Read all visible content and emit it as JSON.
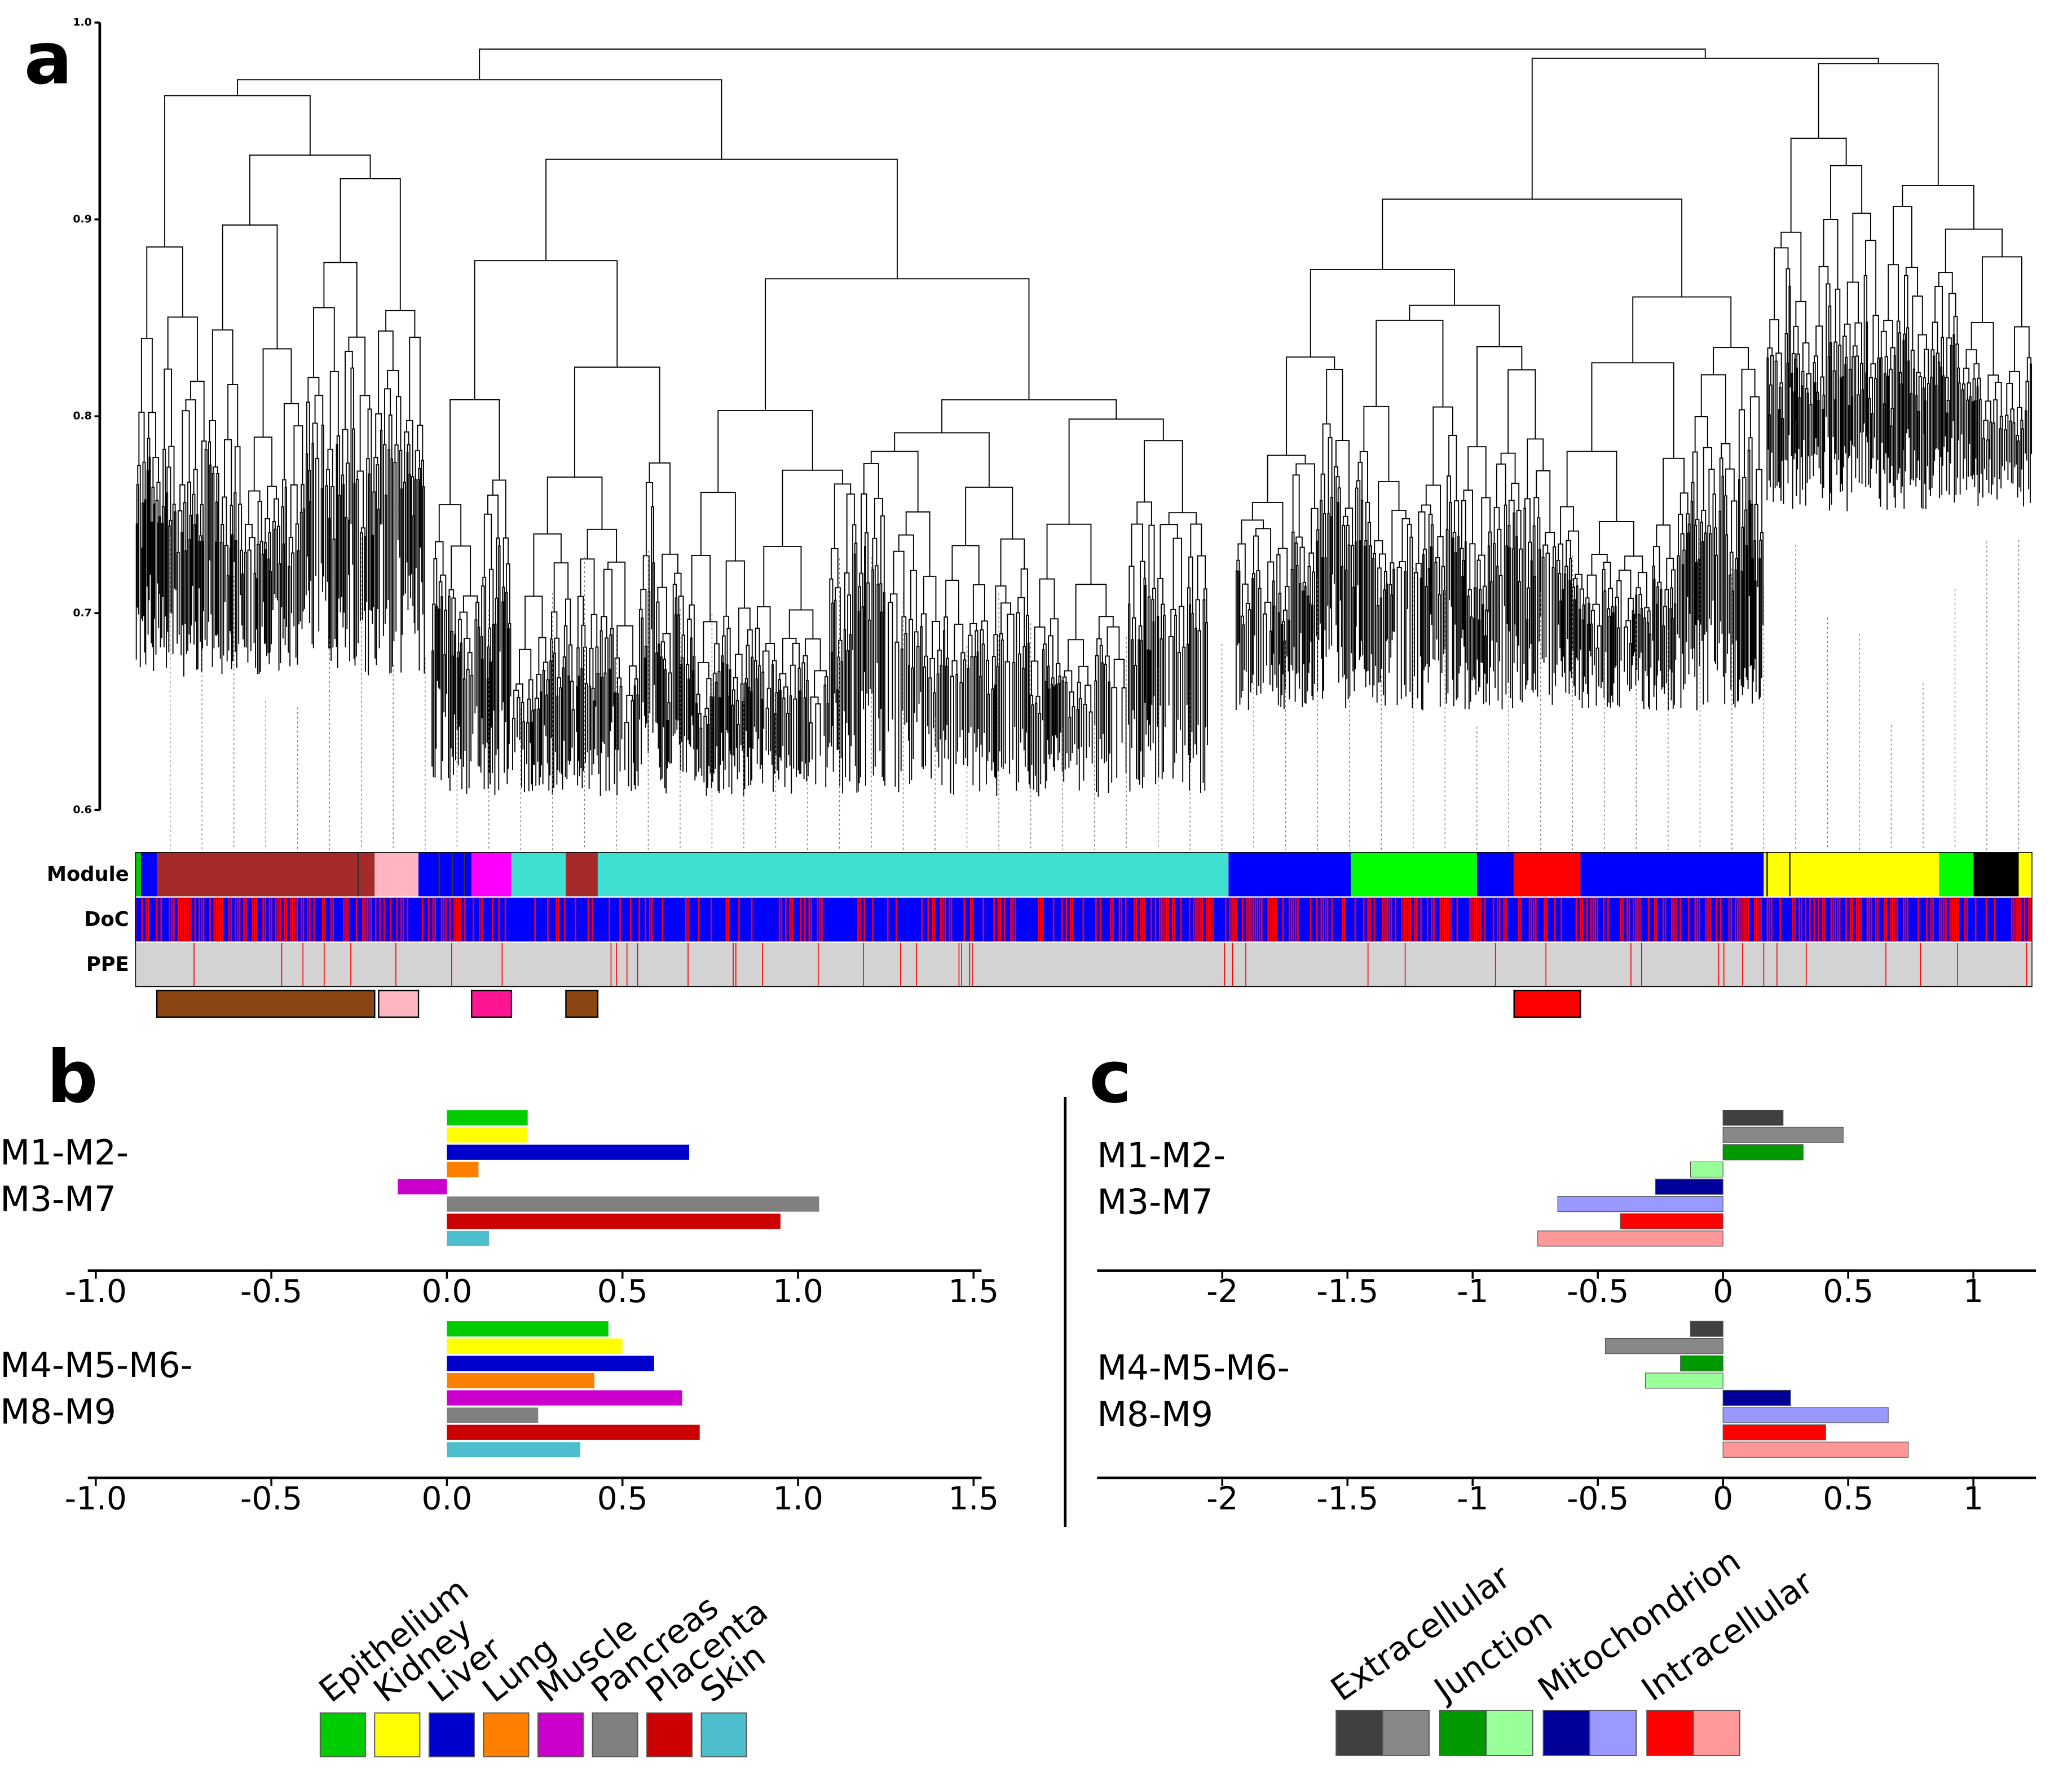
{
  "chart_data": [
    {
      "type": "dendrogram",
      "panel": "a",
      "ylim": [
        0.6,
        1.0
      ],
      "yticks": [
        0.6,
        0.7,
        0.8,
        0.9,
        {
          "value": 1.0,
          "label": "1.0"
        }
      ],
      "row_labels": [
        "Module",
        "DoC",
        "PPE"
      ]
    },
    {
      "type": "bar",
      "orientation": "horizontal",
      "panel": "b",
      "categories": [
        "Epithelium",
        "Kidney",
        "Liver",
        "Lung",
        "Muscle",
        "Pancreas",
        "Placenta",
        "Skin"
      ],
      "colors": [
        "#00cc00",
        "#ffff00",
        "#0000cc",
        "#ff7f00",
        "#cc00cc",
        "#808080",
        "#cc0000",
        "#4dbecc"
      ],
      "groups": [
        {
          "label_lines": [
            "M1-M2-",
            "M3-M7"
          ],
          "values": [
            0.23,
            0.23,
            0.69,
            0.09,
            -0.14,
            1.06,
            0.95,
            0.12
          ]
        },
        {
          "label_lines": [
            "M4-M5-M6-",
            "M8-M9"
          ],
          "values": [
            0.46,
            0.5,
            0.59,
            0.42,
            0.67,
            0.26,
            0.72,
            0.38
          ]
        }
      ],
      "xlim": [
        -1.0,
        1.5
      ],
      "xticks": [
        {
          "value": -1.0,
          "label": "-1.0"
        },
        -0.5,
        {
          "value": 0,
          "label": "0.0"
        },
        0.5,
        {
          "value": 1.0,
          "label": "1.0"
        },
        1.5
      ]
    },
    {
      "type": "bar",
      "orientation": "horizontal",
      "panel": "c",
      "legend": [
        "Extracellular",
        "Junction",
        "Mitochondrion",
        "Intracellular"
      ],
      "colors": [
        "#404040",
        "#888888",
        "#009900",
        "#99ff99",
        "#000099",
        "#9999ff",
        "#ff0000",
        "#ff9999"
      ],
      "groups": [
        {
          "label_lines": [
            "M1-M2-",
            "M3-M7"
          ],
          "values": [
            0.24,
            0.48,
            0.32,
            -0.13,
            -0.27,
            -0.66,
            -0.41,
            -0.74
          ]
        },
        {
          "label_lines": [
            "M4-M5-M6-",
            "M8-M9"
          ],
          "values": [
            -0.13,
            -0.47,
            -0.17,
            -0.31,
            0.27,
            0.66,
            0.41,
            0.74
          ]
        }
      ],
      "xlim": [
        -2.5,
        1.25
      ],
      "xticks": [
        -2,
        -1.5,
        -1,
        -0.5,
        0,
        0.5,
        1
      ]
    }
  ]
}
